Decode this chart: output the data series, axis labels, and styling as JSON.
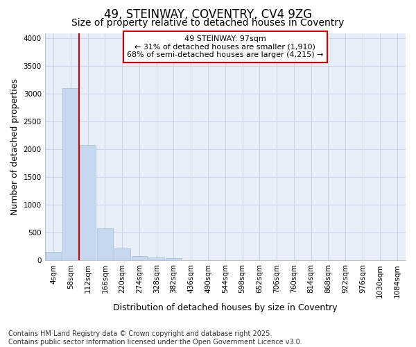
{
  "title_line1": "49, STEINWAY, COVENTRY, CV4 9ZG",
  "title_line2": "Size of property relative to detached houses in Coventry",
  "xlabel": "Distribution of detached houses by size in Coventry",
  "ylabel": "Number of detached properties",
  "categories": [
    "4sqm",
    "58sqm",
    "112sqm",
    "166sqm",
    "220sqm",
    "274sqm",
    "328sqm",
    "382sqm",
    "436sqm",
    "490sqm",
    "544sqm",
    "598sqm",
    "652sqm",
    "706sqm",
    "760sqm",
    "814sqm",
    "868sqm",
    "922sqm",
    "976sqm",
    "1030sqm",
    "1084sqm"
  ],
  "bar_values": [
    150,
    3100,
    2080,
    580,
    210,
    80,
    55,
    45,
    0,
    0,
    0,
    0,
    0,
    0,
    0,
    0,
    0,
    0,
    0,
    0,
    0
  ],
  "bar_color": "#c5d8f0",
  "bar_edge_color": "#a0bcd8",
  "grid_color": "#c8d4e8",
  "background_color": "#ffffff",
  "plot_bg_color": "#e8eef8",
  "vline_x_index": 1.5,
  "vline_color": "#cc0000",
  "annotation_text": "49 STEINWAY: 97sqm\n← 31% of detached houses are smaller (1,910)\n68% of semi-detached houses are larger (4,215) →",
  "annotation_box_facecolor": "#ffffff",
  "annotation_box_edgecolor": "#cc0000",
  "ylim": [
    0,
    4100
  ],
  "yticks": [
    0,
    500,
    1000,
    1500,
    2000,
    2500,
    3000,
    3500,
    4000
  ],
  "footer_line1": "Contains HM Land Registry data © Crown copyright and database right 2025.",
  "footer_line2": "Contains public sector information licensed under the Open Government Licence v3.0.",
  "title_fontsize": 12,
  "subtitle_fontsize": 10,
  "axis_label_fontsize": 9,
  "tick_fontsize": 7.5,
  "annotation_fontsize": 8,
  "footer_fontsize": 7
}
